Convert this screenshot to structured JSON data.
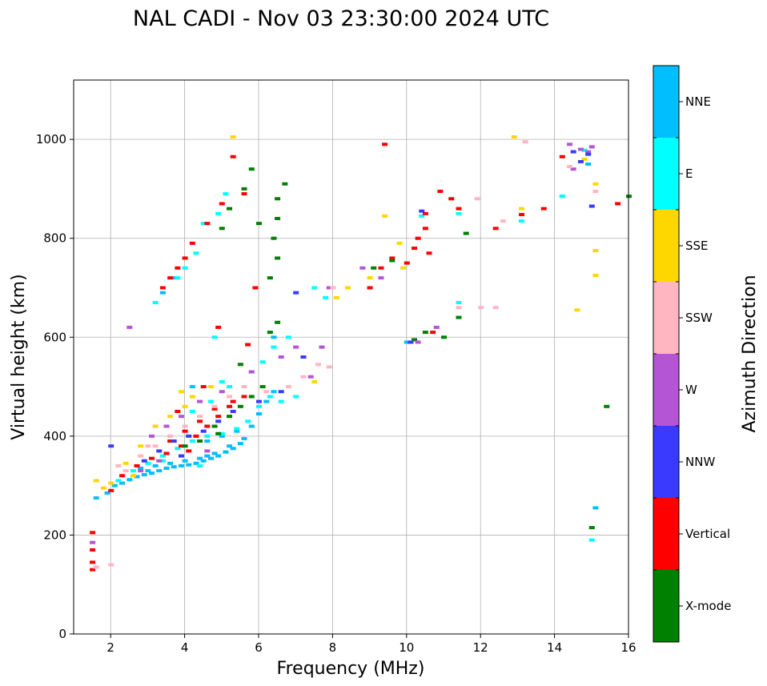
{
  "chart_data": {
    "type": "scatter",
    "title": "NAL CADI - Nov 03 23:30:00 2024 UTC",
    "xlabel": "Frequency (MHz)",
    "ylabel": "Virtual height (km)",
    "xlim": [
      1,
      16
    ],
    "ylim": [
      0,
      1120
    ],
    "xticks": [
      2,
      4,
      6,
      8,
      10,
      12,
      14,
      16
    ],
    "yticks": [
      0,
      200,
      400,
      600,
      800,
      1000
    ],
    "grid": true,
    "colorbar": {
      "title": "Azimuth Direction",
      "position": "right",
      "categories": [
        {
          "name": "X-mode",
          "color": "#008000"
        },
        {
          "name": "Vertical",
          "color": "#ff0000"
        },
        {
          "name": "NNW",
          "color": "#3a3aff"
        },
        {
          "name": "W",
          "color": "#b455d5"
        },
        {
          "name": "SSW",
          "color": "#ffb6c1"
        },
        {
          "name": "SSE",
          "color": "#ffd700"
        },
        {
          "name": "E",
          "color": "#00ffff"
        },
        {
          "name": "NNE",
          "color": "#00bfff"
        }
      ]
    },
    "series": [
      {
        "name": "NNE",
        "points": [
          [
            1.6,
            275
          ],
          [
            1.9,
            285
          ],
          [
            2.1,
            300
          ],
          [
            2.3,
            305
          ],
          [
            2.5,
            312
          ],
          [
            2.7,
            318
          ],
          [
            2.9,
            322
          ],
          [
            3.1,
            325
          ],
          [
            3.3,
            330
          ],
          [
            3.5,
            335
          ],
          [
            3.7,
            338
          ],
          [
            3.9,
            340
          ],
          [
            4.1,
            342
          ],
          [
            4.3,
            345
          ],
          [
            4.5,
            350
          ],
          [
            4.7,
            355
          ],
          [
            4.9,
            360
          ],
          [
            5.1,
            368
          ],
          [
            5.3,
            375
          ],
          [
            5.5,
            385
          ],
          [
            2.8,
            335
          ],
          [
            3.2,
            340
          ],
          [
            3.6,
            345
          ],
          [
            4.0,
            350
          ],
          [
            4.4,
            355
          ],
          [
            4.8,
            365
          ],
          [
            5.2,
            380
          ],
          [
            5.6,
            395
          ],
          [
            5.8,
            420
          ],
          [
            6.0,
            445
          ],
          [
            6.2,
            470
          ],
          [
            6.4,
            490
          ],
          [
            4.6,
            390
          ],
          [
            5.0,
            400
          ],
          [
            5.4,
            410
          ],
          [
            3.4,
            690
          ],
          [
            3.7,
            720
          ],
          [
            4.2,
            500
          ],
          [
            6.4,
            600
          ],
          [
            10.0,
            590
          ],
          [
            14.2,
            885
          ],
          [
            14.9,
            950
          ],
          [
            15.1,
            255
          ],
          [
            4.6,
            360
          ],
          [
            3.0,
            330
          ]
        ]
      },
      {
        "name": "E",
        "points": [
          [
            2.2,
            310
          ],
          [
            2.6,
            330
          ],
          [
            3.0,
            345
          ],
          [
            3.4,
            360
          ],
          [
            3.8,
            375
          ],
          [
            4.2,
            390
          ],
          [
            4.6,
            400
          ],
          [
            5.0,
            405
          ],
          [
            5.4,
            415
          ],
          [
            5.7,
            430
          ],
          [
            6.0,
            460
          ],
          [
            6.3,
            480
          ],
          [
            6.6,
            470
          ],
          [
            7.0,
            480
          ],
          [
            7.5,
            700
          ],
          [
            7.8,
            680
          ],
          [
            4.7,
            470
          ],
          [
            5.2,
            500
          ],
          [
            5.8,
            530
          ],
          [
            6.1,
            550
          ],
          [
            6.4,
            580
          ],
          [
            4.3,
            770
          ],
          [
            4.0,
            740
          ],
          [
            3.8,
            720
          ],
          [
            4.2,
            450
          ],
          [
            5.0,
            510
          ],
          [
            4.8,
            600
          ],
          [
            4.5,
            830
          ],
          [
            4.9,
            850
          ],
          [
            5.1,
            890
          ],
          [
            3.2,
            670
          ],
          [
            11.4,
            850
          ],
          [
            11.4,
            670
          ],
          [
            13.1,
            835
          ],
          [
            14.2,
            885
          ],
          [
            15.0,
            190
          ],
          [
            14.8,
            978
          ],
          [
            10.4,
            845
          ],
          [
            4.4,
            340
          ],
          [
            3.4,
            350
          ],
          [
            6.8,
            600
          ]
        ]
      },
      {
        "name": "Vertical",
        "points": [
          [
            1.5,
            130
          ],
          [
            1.5,
            145
          ],
          [
            1.5,
            205
          ],
          [
            1.5,
            170
          ],
          [
            2.3,
            320
          ],
          [
            2.7,
            340
          ],
          [
            3.1,
            355
          ],
          [
            3.5,
            365
          ],
          [
            3.9,
            380
          ],
          [
            4.3,
            400
          ],
          [
            4.6,
            420
          ],
          [
            4.9,
            440
          ],
          [
            5.2,
            460
          ],
          [
            3.6,
            390
          ],
          [
            4.0,
            410
          ],
          [
            4.4,
            430
          ],
          [
            4.8,
            455
          ],
          [
            5.3,
            470
          ],
          [
            5.6,
            480
          ],
          [
            3.4,
            700
          ],
          [
            3.6,
            720
          ],
          [
            3.8,
            740
          ],
          [
            4.0,
            760
          ],
          [
            4.2,
            790
          ],
          [
            4.6,
            830
          ],
          [
            5.0,
            870
          ],
          [
            5.3,
            965
          ],
          [
            5.6,
            890
          ],
          [
            9.0,
            700
          ],
          [
            9.3,
            740
          ],
          [
            9.6,
            760
          ],
          [
            10.0,
            750
          ],
          [
            10.2,
            780
          ],
          [
            10.3,
            800
          ],
          [
            10.5,
            820
          ],
          [
            10.6,
            770
          ],
          [
            10.9,
            895
          ],
          [
            11.2,
            880
          ],
          [
            11.4,
            860
          ],
          [
            12.4,
            820
          ],
          [
            13.1,
            848
          ],
          [
            13.7,
            860
          ],
          [
            14.2,
            965
          ],
          [
            15.7,
            870
          ],
          [
            9.4,
            990
          ],
          [
            10.7,
            610
          ],
          [
            5.9,
            700
          ],
          [
            5.7,
            585
          ],
          [
            4.9,
            620
          ],
          [
            4.1,
            370
          ],
          [
            4.5,
            500
          ],
          [
            3.8,
            450
          ],
          [
            2.0,
            290
          ],
          [
            10.5,
            850
          ]
        ]
      },
      {
        "name": "X-mode",
        "points": [
          [
            4.0,
            380
          ],
          [
            4.4,
            390
          ],
          [
            4.8,
            420
          ],
          [
            5.2,
            440
          ],
          [
            5.5,
            460
          ],
          [
            5.8,
            480
          ],
          [
            6.1,
            500
          ],
          [
            6.3,
            610
          ],
          [
            6.5,
            630
          ],
          [
            6.5,
            840
          ],
          [
            6.5,
            880
          ],
          [
            6.7,
            910
          ],
          [
            5.6,
            900
          ],
          [
            5.2,
            860
          ],
          [
            5.8,
            940
          ],
          [
            6.4,
            800
          ],
          [
            6.5,
            760
          ],
          [
            6.3,
            720
          ],
          [
            5.0,
            820
          ],
          [
            10.2,
            595
          ],
          [
            10.5,
            610
          ],
          [
            11.0,
            600
          ],
          [
            11.4,
            640
          ],
          [
            11.6,
            810
          ],
          [
            15.4,
            460
          ],
          [
            15.0,
            215
          ],
          [
            16.0,
            885
          ],
          [
            9.6,
            755
          ],
          [
            9.1,
            740
          ],
          [
            5.5,
            545
          ],
          [
            4.9,
            405
          ],
          [
            6.0,
            830
          ]
        ]
      },
      {
        "name": "W",
        "points": [
          [
            1.5,
            185
          ],
          [
            2.5,
            620
          ],
          [
            3.1,
            400
          ],
          [
            3.5,
            420
          ],
          [
            3.9,
            440
          ],
          [
            4.4,
            470
          ],
          [
            5.0,
            490
          ],
          [
            5.8,
            530
          ],
          [
            6.6,
            560
          ],
          [
            7.0,
            580
          ],
          [
            7.7,
            580
          ],
          [
            8.8,
            740
          ],
          [
            9.3,
            720
          ],
          [
            10.3,
            590
          ],
          [
            10.8,
            620
          ],
          [
            14.4,
            990
          ],
          [
            14.5,
            940
          ],
          [
            14.7,
            980
          ],
          [
            14.9,
            975
          ],
          [
            15.0,
            985
          ],
          [
            7.4,
            520
          ],
          [
            7.9,
            700
          ],
          [
            4.6,
            370
          ],
          [
            3.3,
            350
          ],
          [
            2.8,
            330
          ]
        ]
      },
      {
        "name": "SSW",
        "points": [
          [
            1.6,
            135
          ],
          [
            2.0,
            140
          ],
          [
            2.4,
            330
          ],
          [
            2.8,
            360
          ],
          [
            3.2,
            380
          ],
          [
            3.6,
            400
          ],
          [
            4.0,
            420
          ],
          [
            4.4,
            440
          ],
          [
            4.8,
            460
          ],
          [
            5.2,
            480
          ],
          [
            5.6,
            500
          ],
          [
            6.2,
            490
          ],
          [
            6.8,
            500
          ],
          [
            7.2,
            520
          ],
          [
            7.9,
            540
          ],
          [
            8.0,
            700
          ],
          [
            11.4,
            660
          ],
          [
            11.9,
            880
          ],
          [
            12.0,
            660
          ],
          [
            12.4,
            660
          ],
          [
            12.6,
            835
          ],
          [
            13.2,
            995
          ],
          [
            14.4,
            945
          ],
          [
            15.1,
            895
          ],
          [
            2.2,
            340
          ],
          [
            3.0,
            380
          ],
          [
            7.6,
            545
          ]
        ]
      },
      {
        "name": "SSE",
        "points": [
          [
            1.6,
            310
          ],
          [
            1.8,
            295
          ],
          [
            2.0,
            305
          ],
          [
            2.4,
            345
          ],
          [
            2.8,
            380
          ],
          [
            3.2,
            420
          ],
          [
            3.6,
            440
          ],
          [
            4.0,
            460
          ],
          [
            4.2,
            480
          ],
          [
            3.9,
            490
          ],
          [
            4.7,
            500
          ],
          [
            5.3,
            1005
          ],
          [
            8.4,
            700
          ],
          [
            8.1,
            680
          ],
          [
            9.0,
            720
          ],
          [
            9.4,
            845
          ],
          [
            9.9,
            740
          ],
          [
            9.8,
            790
          ],
          [
            12.9,
            1005
          ],
          [
            13.1,
            860
          ],
          [
            14.6,
            655
          ],
          [
            14.8,
            960
          ],
          [
            15.1,
            775
          ],
          [
            15.1,
            725
          ],
          [
            15.1,
            910
          ],
          [
            7.5,
            510
          ],
          [
            2.6,
            320
          ]
        ]
      },
      {
        "name": "NNW",
        "points": [
          [
            2.0,
            380
          ],
          [
            2.9,
            350
          ],
          [
            3.3,
            370
          ],
          [
            3.7,
            390
          ],
          [
            4.1,
            400
          ],
          [
            4.5,
            410
          ],
          [
            4.9,
            430
          ],
          [
            5.3,
            450
          ],
          [
            6.0,
            470
          ],
          [
            6.6,
            490
          ],
          [
            7.2,
            560
          ],
          [
            7.0,
            690
          ],
          [
            10.1,
            590
          ],
          [
            14.5,
            975
          ],
          [
            14.9,
            970
          ],
          [
            15.0,
            865
          ],
          [
            14.7,
            955
          ],
          [
            10.4,
            855
          ],
          [
            3.9,
            360
          ]
        ]
      }
    ]
  }
}
